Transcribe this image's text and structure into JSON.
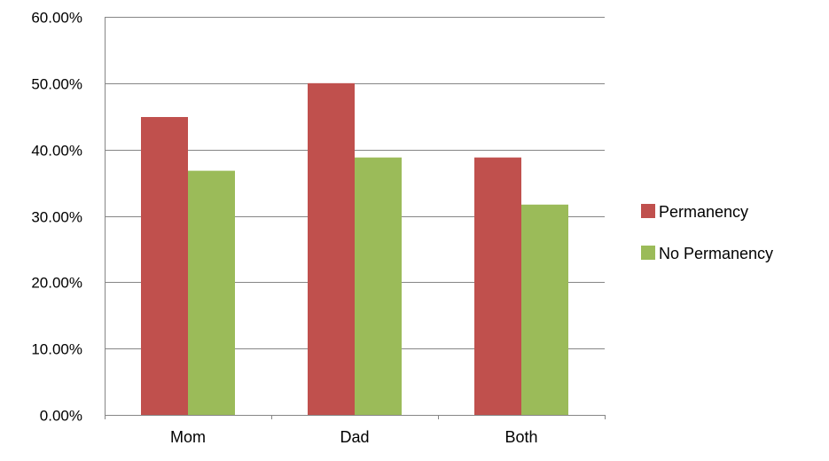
{
  "chart_data": {
    "type": "bar",
    "title": "",
    "xlabel": "",
    "ylabel": "",
    "categories": [
      "Mom",
      "Dad",
      "Both"
    ],
    "series": [
      {
        "name": "Permanency",
        "values": [
          0.449,
          0.5,
          0.388
        ],
        "color": "#c0504d"
      },
      {
        "name": "No Permanency",
        "values": [
          0.368,
          0.388,
          0.317
        ],
        "color": "#9bbb59"
      }
    ],
    "ylim": [
      0,
      0.6
    ],
    "y_ticks": [
      0,
      0.1,
      0.2,
      0.3,
      0.4,
      0.5,
      0.6
    ],
    "y_tick_labels": [
      "0.00%",
      "10.00%",
      "20.00%",
      "30.00%",
      "40.00%",
      "50.00%",
      "60.00%"
    ],
    "grid": true,
    "legend_position": "right"
  }
}
